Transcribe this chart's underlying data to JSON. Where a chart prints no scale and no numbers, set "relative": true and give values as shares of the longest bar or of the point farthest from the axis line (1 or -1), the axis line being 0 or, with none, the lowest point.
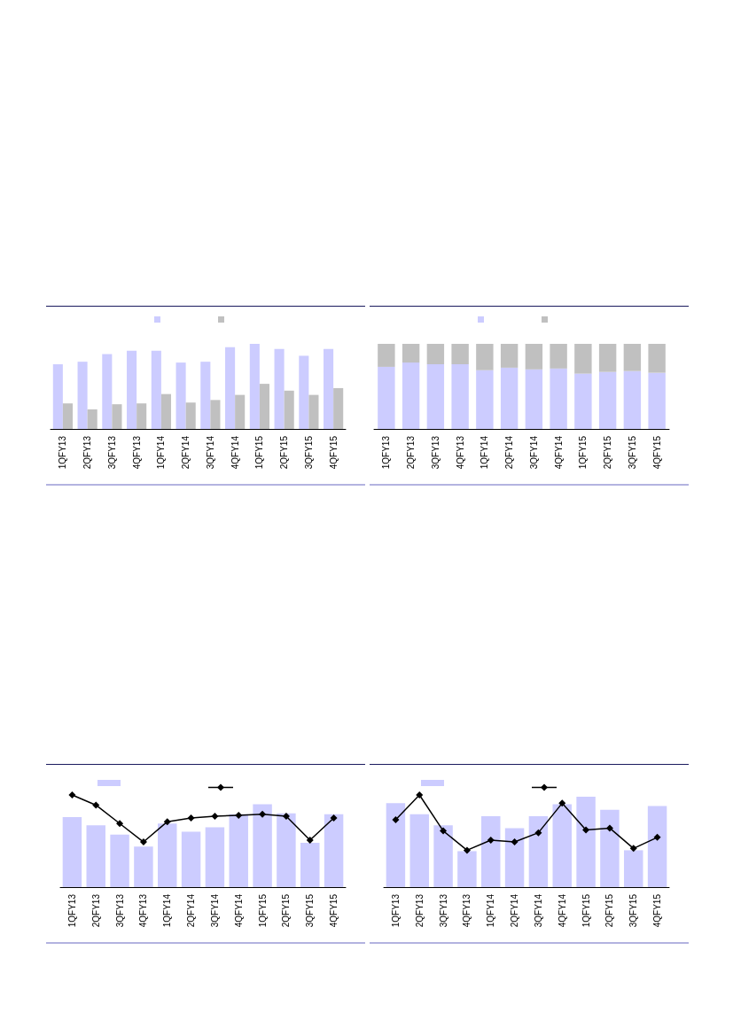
{
  "chart_data": [
    {
      "type": "bar",
      "relative": true,
      "categories": [
        "1QFY13",
        "2QFY13",
        "3QFY13",
        "4QFY13",
        "1QFY14",
        "2QFY14",
        "3QFY14",
        "4QFY14",
        "1QFY15",
        "2QFY15",
        "3QFY15",
        "4QFY15"
      ],
      "series": [
        {
          "color": "#ccccff",
          "values": [
            0.76,
            0.79,
            0.88,
            0.92,
            0.92,
            0.78,
            0.79,
            0.96,
            1,
            0.94,
            0.86,
            0.94
          ]
        },
        {
          "color": "#c0c0c0",
          "values": [
            0.3,
            0.23,
            0.29,
            0.3,
            0.41,
            0.31,
            0.34,
            0.4,
            0.53,
            0.45,
            0.4,
            0.48
          ]
        }
      ]
    },
    {
      "type": "bar",
      "relative": true,
      "stacked": true,
      "categories": [
        "1QFY13",
        "2QFY13",
        "3QFY13",
        "4QFY13",
        "1QFY14",
        "2QFY14",
        "3QFY14",
        "4QFY14",
        "1QFY15",
        "2QFY15",
        "3QFY15",
        "4QFY15"
      ],
      "series": [
        {
          "color": "#ccccff",
          "values": [
            0.73,
            0.78,
            0.76,
            0.76,
            0.69,
            0.72,
            0.7,
            0.71,
            0.65,
            0.67,
            0.68,
            0.66
          ]
        },
        {
          "color": "#c0c0c0",
          "values": [
            0.27,
            0.22,
            0.24,
            0.24,
            0.31,
            0.28,
            0.3,
            0.29,
            0.35,
            0.33,
            0.32,
            0.34
          ]
        }
      ]
    },
    {
      "type": "bar",
      "relative": true,
      "marker": "diamond",
      "categories": [
        "1QFY13",
        "2QFY13",
        "3QFY13",
        "4QFY13",
        "1QFY14",
        "2QFY14",
        "3QFY14",
        "4QFY14",
        "1QFY15",
        "2QFY15",
        "3QFY15",
        "4QFY15"
      ],
      "series": [
        {
          "color": "#ccccff",
          "values": [
            0.76,
            0.67,
            0.57,
            0.44,
            0.69,
            0.6,
            0.65,
            0.79,
            0.9,
            0.8,
            0.48,
            0.79
          ]
        },
        {
          "type": "line",
          "color": "#000000",
          "values": [
            1,
            0.89,
            0.69,
            0.49,
            0.71,
            0.75,
            0.77,
            0.78,
            0.79,
            0.77,
            0.51,
            0.75
          ]
        }
      ]
    },
    {
      "type": "bar",
      "relative": true,
      "marker": "diamond",
      "categories": [
        "1QFY13",
        "2QFY13",
        "3QFY13",
        "4QFY13",
        "1QFY14",
        "2QFY14",
        "3QFY14",
        "4QFY14",
        "1QFY15",
        "2QFY15",
        "3QFY15",
        "4QFY15"
      ],
      "series": [
        {
          "color": "#ccccff",
          "values": [
            0.91,
            0.79,
            0.67,
            0.39,
            0.77,
            0.64,
            0.77,
            0.9,
            0.98,
            0.84,
            0.4,
            0.88
          ]
        },
        {
          "type": "line",
          "color": "#000000",
          "values": [
            0.73,
            1,
            0.61,
            0.4,
            0.51,
            0.49,
            0.59,
            0.91,
            0.62,
            0.64,
            0.42,
            0.54
          ]
        }
      ]
    }
  ]
}
